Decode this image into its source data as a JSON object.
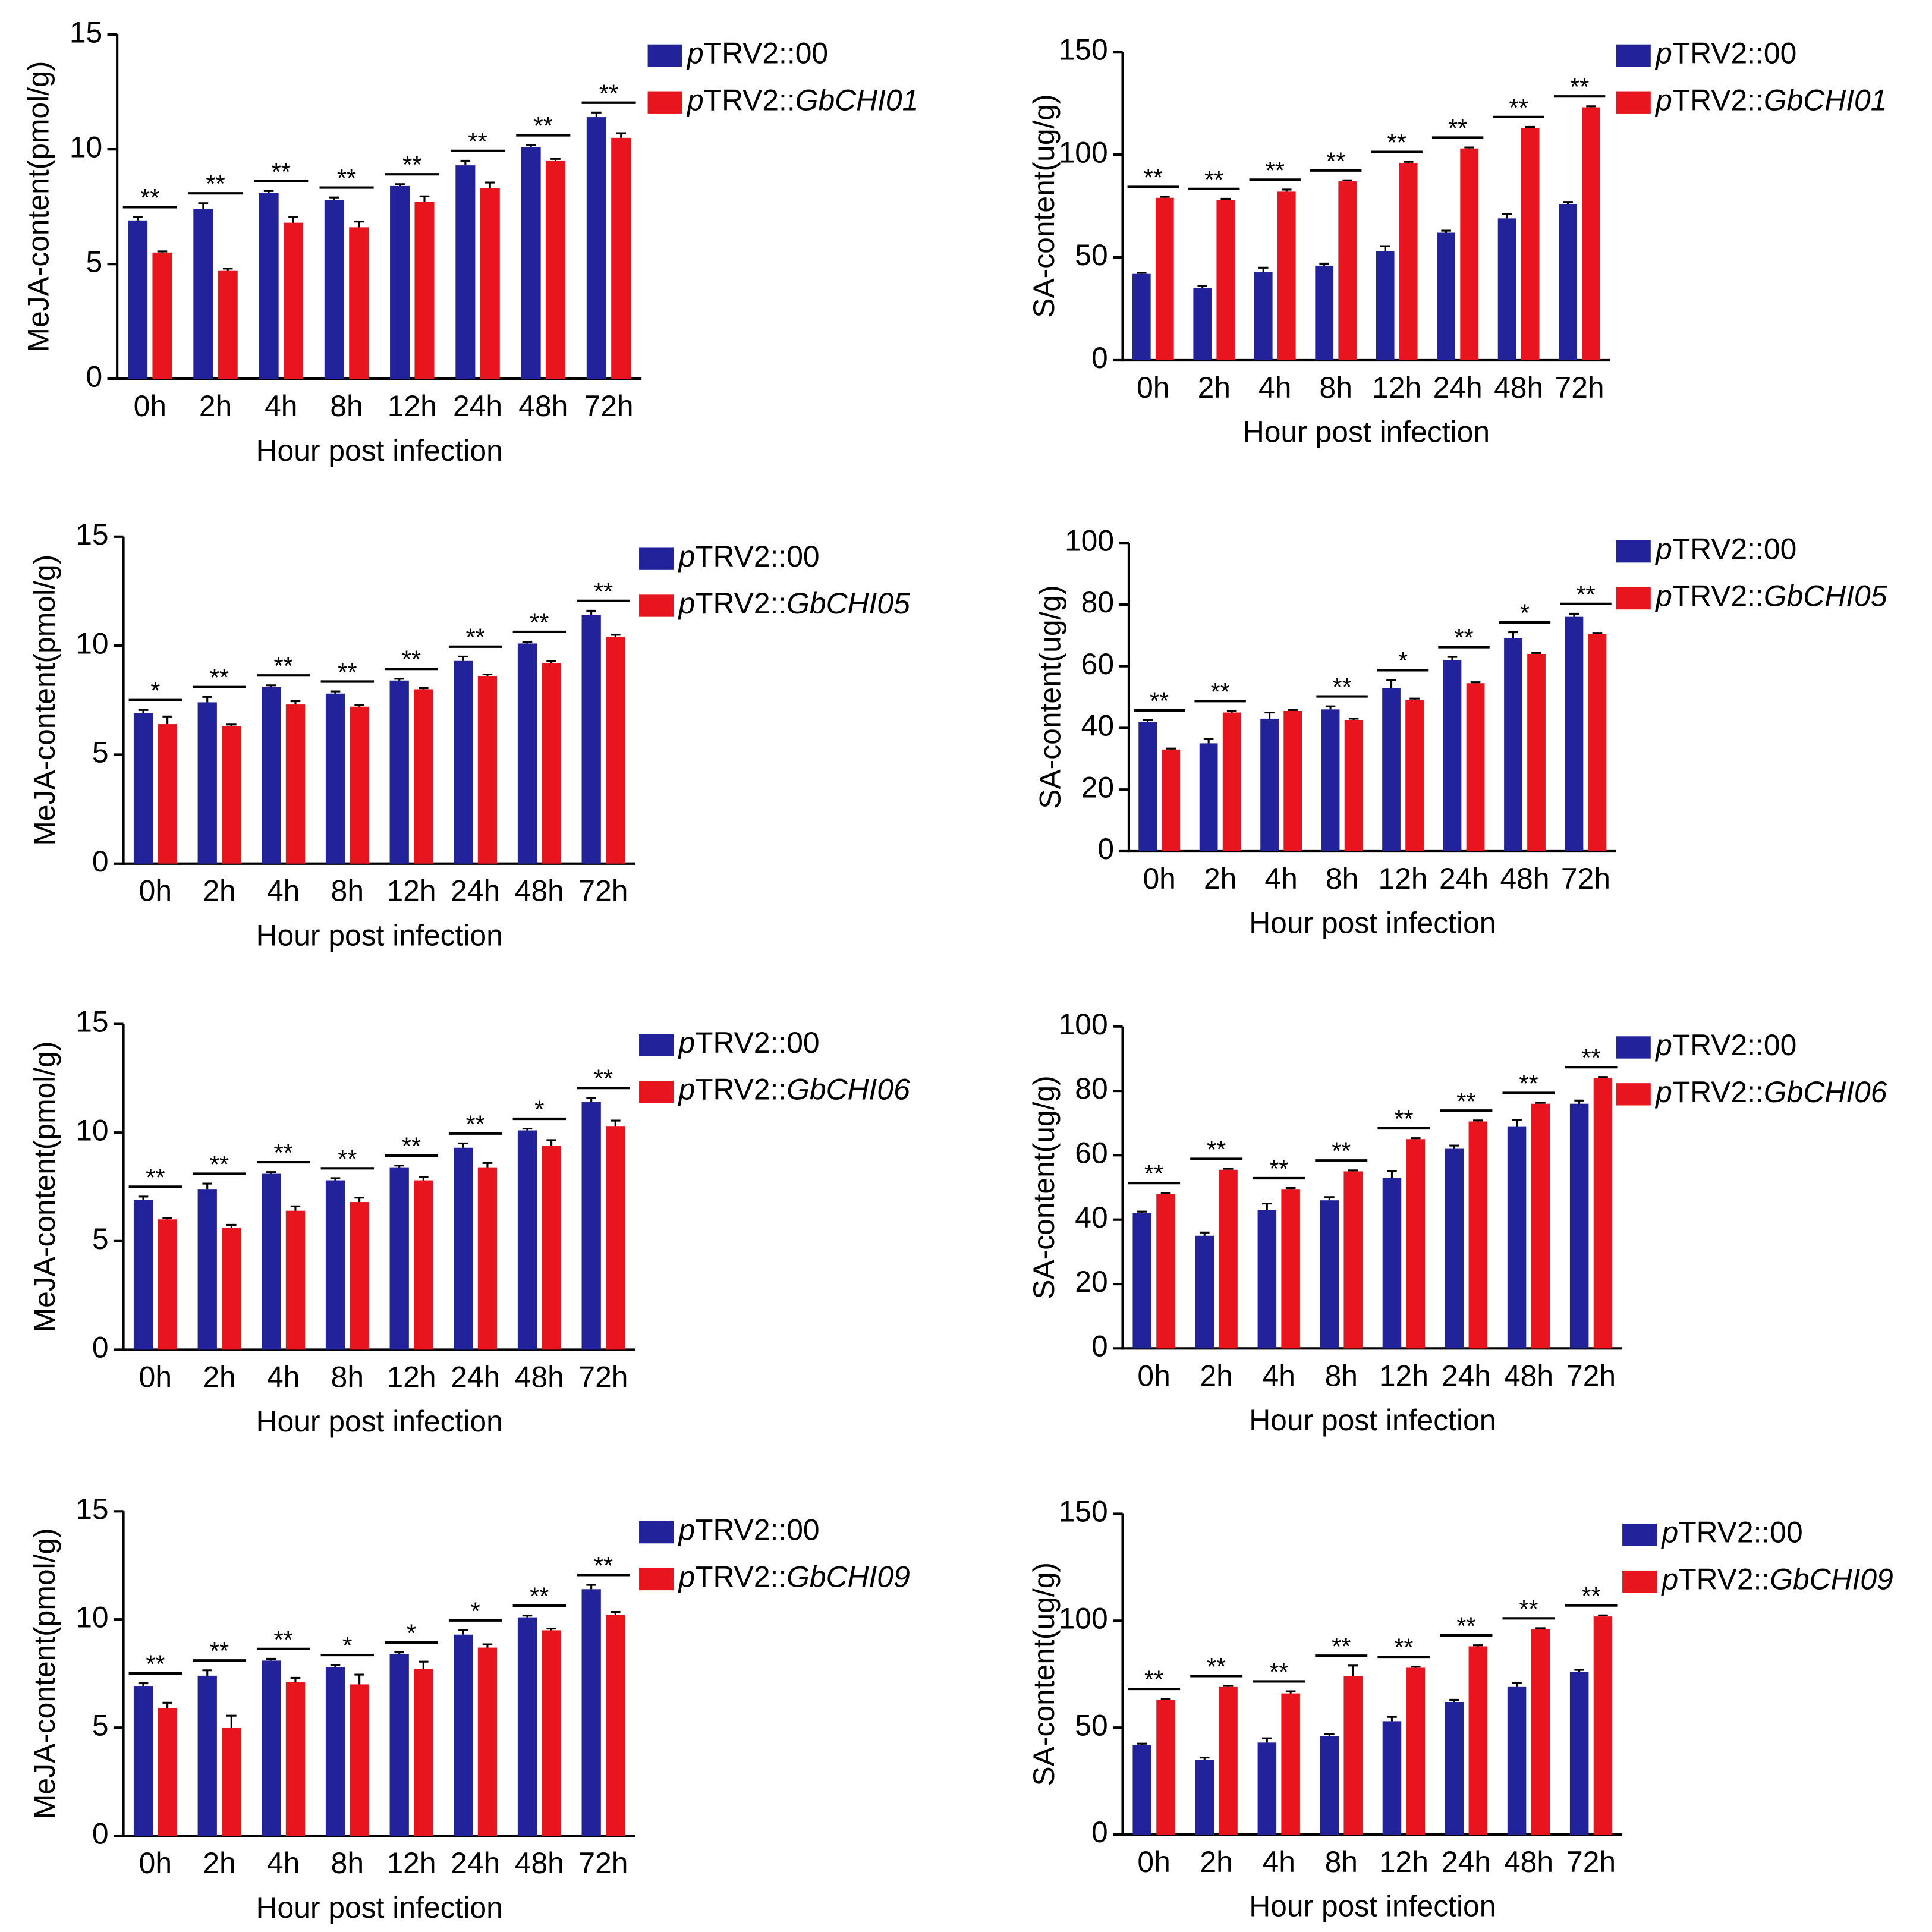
{
  "chart_data": [
    {
      "type": "bar",
      "y_label": "MeJA-content(pmol/g)",
      "x_label": "Hour post infection",
      "categories": [
        "0h",
        "2h",
        "4h",
        "8h",
        "12h",
        "24h",
        "48h",
        "72h"
      ],
      "ylim": [
        0,
        15
      ],
      "yticks": [
        0,
        5,
        10,
        15
      ],
      "series": [
        {
          "name": "pTRV2::00",
          "color": "#22239a",
          "values": [
            6.9,
            7.4,
            8.1,
            7.8,
            8.4,
            9.3,
            10.1,
            11.4
          ],
          "errors": [
            0.15,
            0.25,
            0.08,
            0.1,
            0.08,
            0.2,
            0.08,
            0.2
          ]
        },
        {
          "name": "pTRV2::GbCHI01",
          "color": "#e8141e",
          "values": [
            5.5,
            4.7,
            6.8,
            6.6,
            7.7,
            8.3,
            9.5,
            10.5
          ],
          "errors": [
            0.05,
            0.1,
            0.25,
            0.25,
            0.25,
            0.25,
            0.08,
            0.2
          ]
        }
      ],
      "annotations": [
        "**",
        "**",
        "**",
        "**",
        "**",
        "**",
        "**",
        "**"
      ]
    },
    {
      "type": "bar",
      "y_label": "SA-content(ug/g)",
      "x_label": "Hour post infection",
      "categories": [
        "0h",
        "2h",
        "4h",
        "8h",
        "12h",
        "24h",
        "48h",
        "72h"
      ],
      "ylim": [
        0,
        150
      ],
      "yticks": [
        0,
        50,
        100,
        150
      ],
      "series": [
        {
          "name": "pTRV2::00",
          "color": "#22239a",
          "values": [
            42,
            35,
            43,
            46,
            53,
            62,
            69,
            76
          ],
          "errors": [
            0.5,
            1,
            2,
            1,
            2.5,
            1,
            2,
            1
          ]
        },
        {
          "name": "pTRV2::GbCHI01",
          "color": "#e8141e",
          "values": [
            79,
            78,
            82,
            87,
            96,
            103,
            113,
            123
          ],
          "errors": [
            0.5,
            0.5,
            1,
            0.5,
            0.5,
            0.5,
            0.5,
            0.5
          ]
        }
      ],
      "annotations": [
        "**",
        "**",
        "**",
        "**",
        "**",
        "**",
        "**",
        "**"
      ]
    },
    {
      "type": "bar",
      "y_label": "MeJA-content(pmol/g)",
      "x_label": "Hour post infection",
      "categories": [
        "0h",
        "2h",
        "4h",
        "8h",
        "12h",
        "24h",
        "48h",
        "72h"
      ],
      "ylim": [
        0,
        15
      ],
      "yticks": [
        0,
        5,
        10,
        15
      ],
      "series": [
        {
          "name": "pTRV2::00",
          "color": "#22239a",
          "values": [
            6.9,
            7.4,
            8.1,
            7.8,
            8.4,
            9.3,
            10.1,
            11.4
          ],
          "errors": [
            0.15,
            0.25,
            0.08,
            0.1,
            0.08,
            0.2,
            0.08,
            0.2
          ]
        },
        {
          "name": "pTRV2::GbCHI05",
          "color": "#e8141e",
          "values": [
            6.4,
            6.3,
            7.3,
            7.2,
            8.0,
            8.6,
            9.2,
            10.4
          ],
          "errors": [
            0.35,
            0.08,
            0.15,
            0.08,
            0.05,
            0.08,
            0.08,
            0.1
          ]
        }
      ],
      "annotations": [
        "*",
        "**",
        "**",
        "**",
        "**",
        "**",
        "**",
        "**"
      ]
    },
    {
      "type": "bar",
      "y_label": "SA-content(ug/g)",
      "x_label": "Hour post infection",
      "categories": [
        "0h",
        "2h",
        "4h",
        "8h",
        "12h",
        "24h",
        "48h",
        "72h"
      ],
      "ylim": [
        0,
        100
      ],
      "yticks": [
        0,
        20,
        40,
        60,
        80,
        100
      ],
      "series": [
        {
          "name": "pTRV2::00",
          "color": "#22239a",
          "values": [
            42,
            35,
            43,
            46,
            53,
            62,
            69,
            76
          ],
          "errors": [
            0.5,
            1.5,
            2,
            1,
            2.5,
            1,
            2,
            1
          ]
        },
        {
          "name": "pTRV2::GbCHI05",
          "color": "#e8141e",
          "values": [
            33,
            45,
            45.5,
            42.5,
            49,
            54.5,
            64,
            70.5
          ],
          "errors": [
            0.3,
            0.5,
            0.3,
            0.5,
            0.5,
            0.3,
            0.3,
            0.3
          ]
        }
      ],
      "annotations": [
        "**",
        "**",
        null,
        "**",
        "*",
        "**",
        "*",
        "**"
      ]
    },
    {
      "type": "bar",
      "y_label": "MeJA-content(pmol/g)",
      "x_label": "Hour post infection",
      "categories": [
        "0h",
        "2h",
        "4h",
        "8h",
        "12h",
        "24h",
        "48h",
        "72h"
      ],
      "ylim": [
        0,
        15
      ],
      "yticks": [
        0,
        5,
        10,
        15
      ],
      "series": [
        {
          "name": "pTRV2::00",
          "color": "#22239a",
          "values": [
            6.9,
            7.4,
            8.1,
            7.8,
            8.4,
            9.3,
            10.1,
            11.4
          ],
          "errors": [
            0.15,
            0.25,
            0.08,
            0.1,
            0.08,
            0.2,
            0.08,
            0.2
          ]
        },
        {
          "name": "pTRV2::GbCHI06",
          "color": "#e8141e",
          "values": [
            6.0,
            5.6,
            6.4,
            6.8,
            7.8,
            8.4,
            9.4,
            10.3
          ],
          "errors": [
            0.05,
            0.15,
            0.2,
            0.2,
            0.15,
            0.2,
            0.25,
            0.25
          ]
        }
      ],
      "annotations": [
        "**",
        "**",
        "**",
        "**",
        "**",
        "**",
        "*",
        "**"
      ]
    },
    {
      "type": "bar",
      "y_label": "SA-content(ug/g)",
      "x_label": "Hour post infection",
      "categories": [
        "0h",
        "2h",
        "4h",
        "8h",
        "12h",
        "24h",
        "48h",
        "72h"
      ],
      "ylim": [
        0,
        100
      ],
      "yticks": [
        0,
        20,
        40,
        60,
        80,
        100
      ],
      "series": [
        {
          "name": "pTRV2::00",
          "color": "#22239a",
          "values": [
            42,
            35,
            43,
            46,
            53,
            62,
            69,
            76
          ],
          "errors": [
            0.5,
            1,
            2,
            1,
            2,
            1,
            2,
            1
          ]
        },
        {
          "name": "pTRV2::GbCHI06",
          "color": "#e8141e",
          "values": [
            48,
            55.5,
            49.5,
            55,
            65,
            70.5,
            76,
            84
          ],
          "errors": [
            0.3,
            0.3,
            0.3,
            0.3,
            0.3,
            0.3,
            0.3,
            0.3
          ]
        }
      ],
      "annotations": [
        "**",
        "**",
        "**",
        "**",
        "**",
        "**",
        "**",
        "**"
      ]
    },
    {
      "type": "bar",
      "y_label": "MeJA-content(pmol/g)",
      "x_label": "Hour post infection",
      "categories": [
        "0h",
        "2h",
        "4h",
        "8h",
        "12h",
        "24h",
        "48h",
        "72h"
      ],
      "ylim": [
        0,
        15
      ],
      "yticks": [
        0,
        5,
        10,
        15
      ],
      "series": [
        {
          "name": "pTRV2::00",
          "color": "#22239a",
          "values": [
            6.9,
            7.4,
            8.1,
            7.8,
            8.4,
            9.3,
            10.1,
            11.4
          ],
          "errors": [
            0.15,
            0.25,
            0.08,
            0.1,
            0.08,
            0.2,
            0.08,
            0.2
          ]
        },
        {
          "name": "pTRV2::GbCHI09",
          "color": "#e8141e",
          "values": [
            5.9,
            5.0,
            7.1,
            7.0,
            7.7,
            8.7,
            9.5,
            10.2
          ],
          "errors": [
            0.25,
            0.55,
            0.2,
            0.45,
            0.35,
            0.15,
            0.08,
            0.15
          ]
        }
      ],
      "annotations": [
        "**",
        "**",
        "**",
        "*",
        "*",
        "*",
        "**",
        "**"
      ]
    },
    {
      "type": "bar",
      "y_label": "SA-content(ug/g)",
      "x_label": "Hour post infection",
      "categories": [
        "0h",
        "2h",
        "4h",
        "8h",
        "12h",
        "24h",
        "48h",
        "72h"
      ],
      "ylim": [
        0,
        150
      ],
      "yticks": [
        0,
        50,
        100,
        150
      ],
      "series": [
        {
          "name": "pTRV2::00",
          "color": "#22239a",
          "values": [
            42,
            35,
            43,
            46,
            53,
            62,
            69,
            76
          ],
          "errors": [
            0.5,
            1,
            2,
            1,
            2,
            1,
            2,
            1
          ]
        },
        {
          "name": "pTRV2::GbCHI09",
          "color": "#e8141e",
          "values": [
            63,
            69,
            66,
            74,
            78,
            88,
            96,
            102
          ],
          "errors": [
            0.5,
            0.5,
            1,
            5,
            0.5,
            0.5,
            0.5,
            0.5
          ]
        }
      ],
      "annotations": [
        "**",
        "**",
        "**",
        "**",
        "**",
        "**",
        "**",
        "**"
      ]
    }
  ]
}
